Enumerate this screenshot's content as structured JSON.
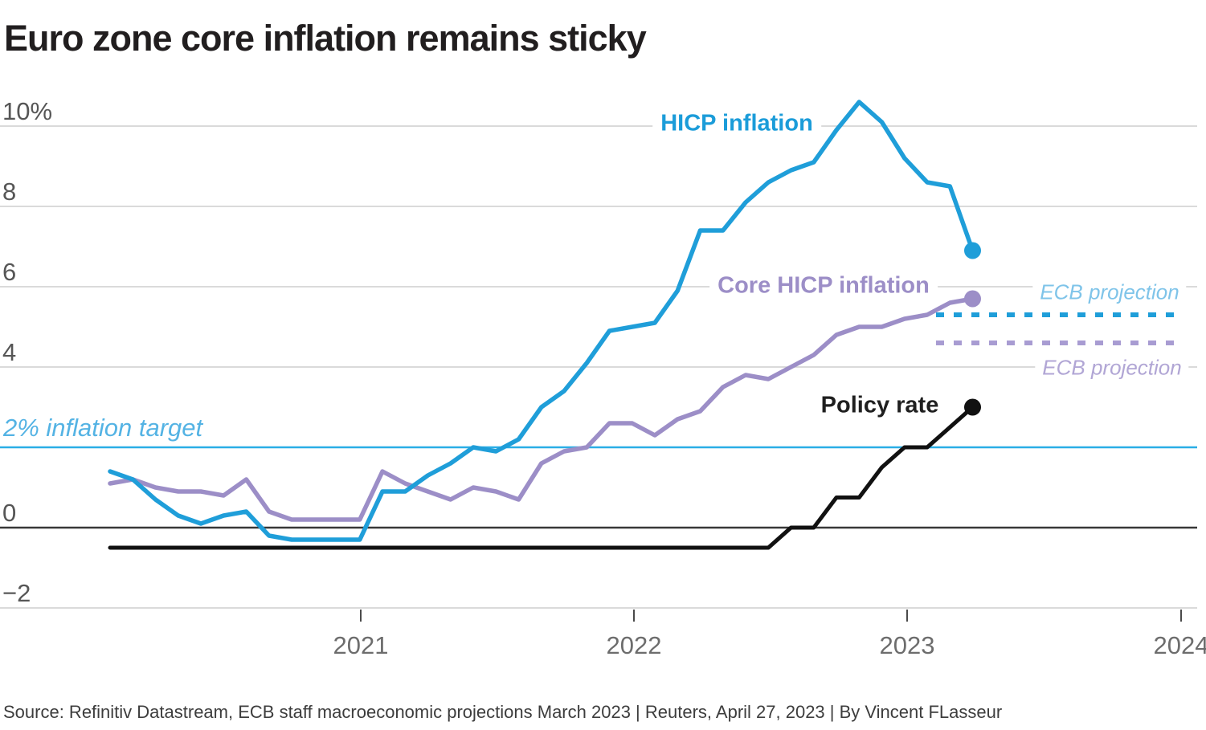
{
  "header": {
    "title": "Euro zone core inflation remains sticky"
  },
  "footer": {
    "source": "Source: Refinitiv Datastream, ECB staff macroeconomic projections March 2023 | Reuters, April 27, 2023 | By Vincent FLasseur"
  },
  "annotations": {
    "target_label": "2% inflation target",
    "hicp_label": "HICP inflation",
    "core_label": "Core HICP inflation",
    "policy_label": "Policy rate",
    "ecb_projection_hicp_label": "ECB projection",
    "ecb_projection_core_label": "ECB projection"
  },
  "colors": {
    "hicp_line": "#1f9ed9",
    "core_line": "#9c8ec7",
    "policy_line": "#111111",
    "target_line": "#2aaee6",
    "projection_hicp": "#1f9ed9",
    "projection_core": "#a89cd2",
    "gridline": "#cdcdcd",
    "zero_line": "#383838",
    "tick": "#4a4a4a"
  },
  "chart_data": {
    "type": "line",
    "title": "Euro zone core inflation remains sticky",
    "xlabel": "",
    "ylabel": "%",
    "ylim": [
      -2.9,
      10.9
    ],
    "grid": "horizontal",
    "legend_position": "inline-labels",
    "x": [
      "2020-01",
      "2020-02",
      "2020-03",
      "2020-04",
      "2020-05",
      "2020-06",
      "2020-07",
      "2020-08",
      "2020-09",
      "2020-10",
      "2020-11",
      "2020-12",
      "2021-01",
      "2021-02",
      "2021-03",
      "2021-04",
      "2021-05",
      "2021-06",
      "2021-07",
      "2021-08",
      "2021-09",
      "2021-10",
      "2021-11",
      "2021-12",
      "2022-01",
      "2022-02",
      "2022-03",
      "2022-04",
      "2022-05",
      "2022-06",
      "2022-07",
      "2022-08",
      "2022-09",
      "2022-10",
      "2022-11",
      "2022-12",
      "2023-01",
      "2023-02",
      "2023-03"
    ],
    "series": [
      {
        "name": "HICP inflation",
        "color": "#1f9ed9",
        "values": [
          1.4,
          1.2,
          0.7,
          0.3,
          0.1,
          0.3,
          0.4,
          -0.2,
          -0.3,
          -0.3,
          -0.3,
          -0.3,
          0.9,
          0.9,
          1.3,
          1.6,
          2.0,
          1.9,
          2.2,
          3.0,
          3.4,
          4.1,
          4.9,
          5.0,
          5.1,
          5.9,
          7.4,
          7.4,
          8.1,
          8.6,
          8.9,
          9.1,
          9.9,
          10.6,
          10.1,
          9.2,
          8.6,
          8.5,
          6.9
        ]
      },
      {
        "name": "Core HICP inflation",
        "color": "#9c8ec7",
        "values": [
          1.1,
          1.2,
          1.0,
          0.9,
          0.9,
          0.8,
          1.2,
          0.4,
          0.2,
          0.2,
          0.2,
          0.2,
          1.4,
          1.1,
          0.9,
          0.7,
          1.0,
          0.9,
          0.7,
          1.6,
          1.9,
          2.0,
          2.6,
          2.6,
          2.3,
          2.7,
          2.9,
          3.5,
          3.8,
          3.7,
          4.0,
          4.3,
          4.8,
          5.0,
          5.0,
          5.2,
          5.3,
          5.6,
          5.7
        ]
      },
      {
        "name": "Policy rate",
        "color": "#111111",
        "values": [
          -0.5,
          -0.5,
          -0.5,
          -0.5,
          -0.5,
          -0.5,
          -0.5,
          -0.5,
          -0.5,
          -0.5,
          -0.5,
          -0.5,
          -0.5,
          -0.5,
          -0.5,
          -0.5,
          -0.5,
          -0.5,
          -0.5,
          -0.5,
          -0.5,
          -0.5,
          -0.5,
          -0.5,
          -0.5,
          -0.5,
          -0.5,
          -0.5,
          -0.5,
          -0.5,
          0.0,
          0.0,
          0.75,
          0.75,
          1.5,
          2.0,
          2.0,
          2.5,
          3.0
        ]
      }
    ],
    "projections": [
      {
        "name": "ECB projection (HICP)",
        "color": "#1f9ed9",
        "value": 5.3,
        "period": "2023-2024",
        "style": "dashed"
      },
      {
        "name": "ECB projection (core HICP)",
        "color": "#a89cd2",
        "value": 4.6,
        "period": "2023-2024",
        "style": "dashed"
      }
    ],
    "reference_lines": [
      {
        "label": "2% inflation target",
        "value": 2.0,
        "color": "#2aaee6"
      }
    ],
    "x_tick_labels": [
      "2021",
      "2022",
      "2023",
      "2024"
    ],
    "y_ticks": [
      {
        "label": "10%",
        "value": 10
      },
      {
        "label": "8",
        "value": 8
      },
      {
        "label": "6",
        "value": 6
      },
      {
        "label": "4",
        "value": 4
      },
      {
        "label": "0",
        "value": 0
      },
      {
        "label": "−2",
        "value": -2
      }
    ]
  }
}
